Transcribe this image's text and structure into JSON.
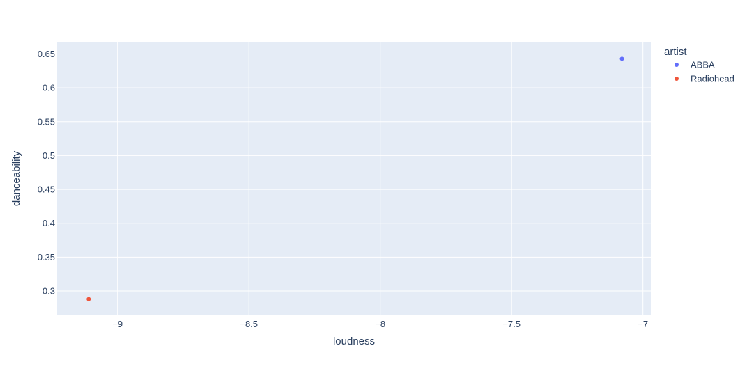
{
  "chart_data": {
    "type": "scatter",
    "xlabel": "loudness",
    "ylabel": "danceability",
    "xlim": [
      -9.23,
      -6.97
    ],
    "ylim": [
      0.264,
      0.668
    ],
    "x_ticks": [
      -9,
      -8.5,
      -8,
      -7.5,
      -7
    ],
    "x_tick_labels": [
      "−9",
      "−8.5",
      "−8",
      "−7.5",
      "−7"
    ],
    "y_ticks": [
      0.3,
      0.35,
      0.4,
      0.45,
      0.5,
      0.55,
      0.6,
      0.65
    ],
    "y_tick_labels": [
      "0.3",
      "0.35",
      "0.4",
      "0.45",
      "0.5",
      "0.55",
      "0.6",
      "0.65"
    ],
    "grid": true,
    "legend": {
      "title": "artist",
      "placement": "right"
    },
    "series": [
      {
        "name": "ABBA",
        "color": "#636efa",
        "points": [
          {
            "x": -7.08,
            "y": 0.643
          }
        ]
      },
      {
        "name": "Radiohead",
        "color": "#ef553b",
        "points": [
          {
            "x": -9.11,
            "y": 0.288
          }
        ]
      }
    ]
  },
  "colors": {
    "plot_bg": "#e5ecf6",
    "grid": "#ffffff",
    "text": "#2a3f5f"
  }
}
